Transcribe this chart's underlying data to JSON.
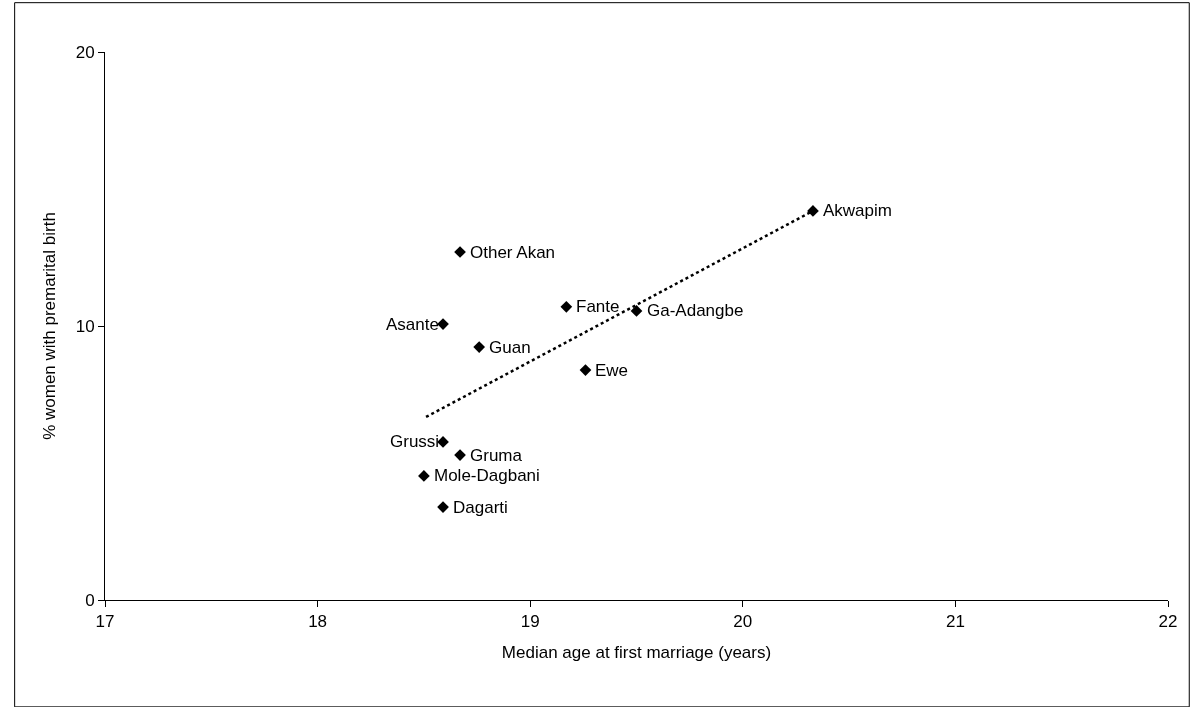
{
  "chart_data": {
    "type": "scatter",
    "xlabel": "Median age at first marriage (years)",
    "ylabel": "% women with premarital birth",
    "xlim": [
      17,
      22
    ],
    "xticks": [
      17,
      18,
      19,
      20,
      21,
      22
    ],
    "ylim": [
      0,
      20
    ],
    "yticks": [
      0,
      10,
      20
    ],
    "marker": "diamond",
    "series": [
      {
        "color": "#000000",
        "x": [
          20.33,
          18.67,
          19.17,
          19.5,
          18.59,
          18.76,
          19.26,
          18.59,
          18.67,
          18.5,
          18.59
        ],
        "values": [
          14.2,
          12.7,
          10.7,
          10.55,
          10.07,
          9.23,
          8.39,
          5.77,
          5.29,
          4.53,
          3.39
        ]
      },
      {
        "type": "line",
        "color": "#000000",
        "line_style": "dotted",
        "marker": "none",
        "x": [
          18.51,
          20.33
        ],
        "values": [
          6.68,
          14.2
        ]
      }
    ],
    "annotations": [
      {
        "text": "Akwapim",
        "x": 20.33,
        "y": 14.2
      },
      {
        "text": "Other Akan",
        "x": 18.67,
        "y": 12.7
      },
      {
        "text": "Fante",
        "x": 19.17,
        "y": 10.7
      },
      {
        "text": "Ga-Adangbe",
        "x": 19.5,
        "y": 10.55
      },
      {
        "text": "Asante",
        "x": 18.59,
        "y": 10.07
      },
      {
        "text": "Guan",
        "x": 18.76,
        "y": 9.23
      },
      {
        "text": "Ewe",
        "x": 19.26,
        "y": 8.39
      },
      {
        "text": "Grussi",
        "x": 18.59,
        "y": 5.77
      },
      {
        "text": "Gruma",
        "x": 18.67,
        "y": 5.29
      },
      {
        "text": "Mole-Dagbani",
        "x": 18.5,
        "y": 4.53
      },
      {
        "text": "Dagarti",
        "x": 18.59,
        "y": 3.39
      }
    ]
  }
}
